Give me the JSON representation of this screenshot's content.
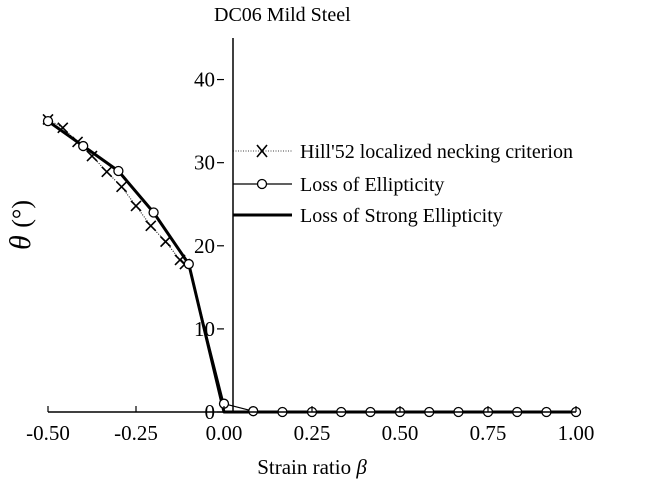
{
  "chart_data": {
    "type": "line",
    "title": "DC06 Mild Steel",
    "xlabel": "Strain ratio",
    "xlabel_symbol": "β",
    "ylabel_symbol": "θ",
    "ylabel_unit": "(°)",
    "xlim": [
      -0.5,
      1.0
    ],
    "ylim": [
      0,
      45
    ],
    "x_ticks": [
      -0.5,
      -0.25,
      0.0,
      0.25,
      0.5,
      0.75,
      1.0
    ],
    "x_tick_labels": [
      "-0.50",
      "-0.25",
      "0.00",
      "0.25",
      "0.50",
      "0.75",
      "1.00"
    ],
    "y_ticks": [
      0,
      10,
      20,
      30,
      40
    ],
    "y_tick_labels": [
      "0",
      "10",
      "20",
      "30",
      "40"
    ],
    "grid": false,
    "legend_position": "right",
    "series": [
      {
        "name": "Hill'52 localized necking criterion",
        "marker": "x",
        "line_style": "thin-dotted",
        "color": "#000000",
        "x": [
          -0.5,
          -0.458,
          -0.416,
          -0.375,
          -0.333,
          -0.291,
          -0.25,
          -0.208,
          -0.166,
          -0.125,
          -0.111
        ],
        "y": [
          35.2,
          34.2,
          32.5,
          30.8,
          28.9,
          27.1,
          24.8,
          22.4,
          20.5,
          18.3,
          17.8
        ]
      },
      {
        "name": "Loss of Ellipticity",
        "marker": "circle-open",
        "line_style": "solid",
        "color": "#000000",
        "x": [
          -0.5,
          -0.4,
          -0.3,
          -0.2,
          -0.1,
          0.0,
          0.083,
          0.166,
          0.25,
          0.333,
          0.416,
          0.5,
          0.583,
          0.666,
          0.75,
          0.833,
          0.916,
          1.0
        ],
        "y": [
          35.0,
          32.0,
          29.0,
          24.0,
          17.8,
          1.0,
          0.1,
          0.0,
          0.0,
          0.0,
          0.0,
          0.0,
          0.0,
          0.0,
          0.0,
          0.0,
          0.0,
          0.0
        ]
      },
      {
        "name": "Loss of Strong Ellipticity",
        "marker": "none",
        "line_style": "thick",
        "color": "#000000",
        "x": [
          -0.5,
          -0.4,
          -0.3,
          -0.2,
          -0.1,
          0.0,
          1.0
        ],
        "y": [
          35.0,
          32.0,
          29.0,
          24.0,
          17.8,
          0.0,
          0.0
        ]
      }
    ]
  }
}
